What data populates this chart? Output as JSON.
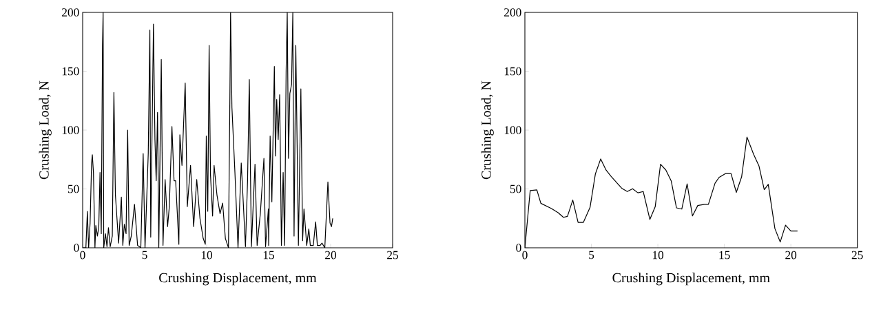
{
  "chart_data": [
    {
      "type": "line",
      "xlabel": "Crushing Displacement, mm",
      "ylabel": "Crushing Load, N",
      "color": "#000000",
      "xlim": [
        0,
        25
      ],
      "ylim": [
        0,
        200
      ],
      "xticks": [
        0,
        5,
        10,
        15,
        20,
        25
      ],
      "yticks": [
        0,
        50,
        100,
        150,
        200
      ],
      "x": [
        0,
        0.26,
        0.38,
        0.48,
        0.6,
        0.72,
        0.78,
        0.87,
        0.99,
        1.06,
        1.19,
        1.3,
        1.4,
        1.5,
        1.6,
        1.65,
        1.7,
        1.84,
        1.96,
        2.08,
        2.22,
        2.39,
        2.52,
        2.64,
        2.9,
        3.12,
        3.24,
        3.36,
        3.5,
        3.63,
        3.75,
        3.92,
        4.18,
        4.43,
        4.69,
        4.88,
        5.03,
        5.29,
        5.42,
        5.49,
        5.71,
        5.83,
        5.93,
        6.04,
        6.14,
        6.34,
        6.48,
        6.65,
        6.85,
        6.99,
        7.2,
        7.37,
        7.5,
        7.76,
        7.84,
        8.01,
        8.27,
        8.44,
        8.7,
        8.95,
        9.2,
        9.46,
        9.72,
        9.89,
        9.97,
        10.09,
        10.2,
        10.31,
        10.48,
        10.6,
        10.83,
        11.08,
        11.29,
        11.51,
        11.76,
        11.87,
        11.93,
        12.04,
        12.28,
        12.53,
        12.79,
        12.96,
        13.13,
        13.3,
        13.44,
        13.61,
        13.9,
        14.07,
        14.33,
        14.62,
        14.75,
        14.98,
        15.0,
        15.12,
        15.26,
        15.46,
        15.55,
        15.65,
        15.77,
        15.89,
        16.03,
        16.17,
        16.29,
        16.41,
        16.5,
        16.6,
        16.71,
        16.85,
        16.95,
        17.05,
        17.19,
        17.31,
        17.4,
        17.6,
        17.74,
        17.85,
        17.96,
        18.07,
        18.24,
        18.36,
        18.6,
        18.79,
        18.93,
        19.15,
        19.3,
        19.53,
        19.78,
        19.95,
        20.07,
        20.17
      ],
      "values": [
        0,
        0,
        31,
        0,
        21,
        72,
        79,
        64,
        0,
        19,
        10,
        18,
        64,
        12,
        172,
        200,
        0,
        12,
        1,
        17,
        1,
        10,
        132,
        45,
        4,
        43,
        2,
        20,
        12,
        100,
        2,
        10,
        37,
        2,
        0,
        80,
        0,
        80,
        185,
        9,
        190,
        92,
        57,
        115,
        0,
        160,
        2,
        58,
        18,
        35,
        103,
        57,
        57,
        3,
        96,
        70,
        140,
        35,
        70,
        18,
        58,
        25,
        8,
        3,
        95,
        31,
        172,
        62,
        27,
        70,
        45,
        29,
        38,
        8,
        0,
        123,
        200,
        119,
        64,
        0,
        72,
        37,
        1,
        57,
        143,
        1,
        71,
        2,
        29,
        76,
        1,
        33,
        2,
        95,
        39,
        154,
        78,
        126,
        92,
        130,
        2,
        64,
        2,
        150,
        200,
        76,
        131,
        139,
        200,
        10,
        172,
        78,
        2,
        135,
        6,
        33,
        18,
        2,
        16,
        2,
        2,
        22,
        2,
        2,
        4,
        0,
        56,
        21,
        18,
        25
      ]
    },
    {
      "type": "line",
      "xlabel": "Crushing Displacement, mm",
      "ylabel": "Crushing Load, N",
      "color": "#000000",
      "xlim": [
        0,
        25
      ],
      "ylim": [
        0,
        200
      ],
      "xticks": [
        0,
        5,
        10,
        15,
        20,
        25
      ],
      "yticks": [
        0,
        50,
        100,
        150,
        200
      ],
      "x": [
        0,
        0.4,
        0.9,
        1.2,
        2.0,
        2.5,
        2.9,
        3.2,
        3.6,
        4.0,
        4.4,
        4.9,
        5.3,
        5.7,
        6.1,
        6.5,
        7.3,
        7.7,
        8.1,
        8.5,
        8.9,
        9.4,
        9.8,
        10.2,
        10.6,
        11.0,
        11.4,
        11.8,
        12.2,
        12.6,
        13.0,
        13.5,
        13.8,
        14.3,
        14.6,
        15.1,
        15.5,
        15.9,
        16.3,
        16.7,
        17.2,
        17.6,
        18.0,
        18.3,
        18.8,
        19.2,
        19.6,
        20.0,
        20.5
      ],
      "values": [
        0,
        48.6,
        49.2,
        37.8,
        33.3,
        29.8,
        25.9,
        26.7,
        40.6,
        21.6,
        21.6,
        34.3,
        62.7,
        75.5,
        66.1,
        60.4,
        50.4,
        47.8,
        50.2,
        46.7,
        47.8,
        24.1,
        34.9,
        71.0,
        66.1,
        56.9,
        33.9,
        32.9,
        54.3,
        27.1,
        35.9,
        36.9,
        36.9,
        54.9,
        59.8,
        63.1,
        63.1,
        47.1,
        60.4,
        94.1,
        79.4,
        69.6,
        49.4,
        53.9,
        16.3,
        4.9,
        19.2,
        14.3,
        14.3
      ]
    }
  ]
}
